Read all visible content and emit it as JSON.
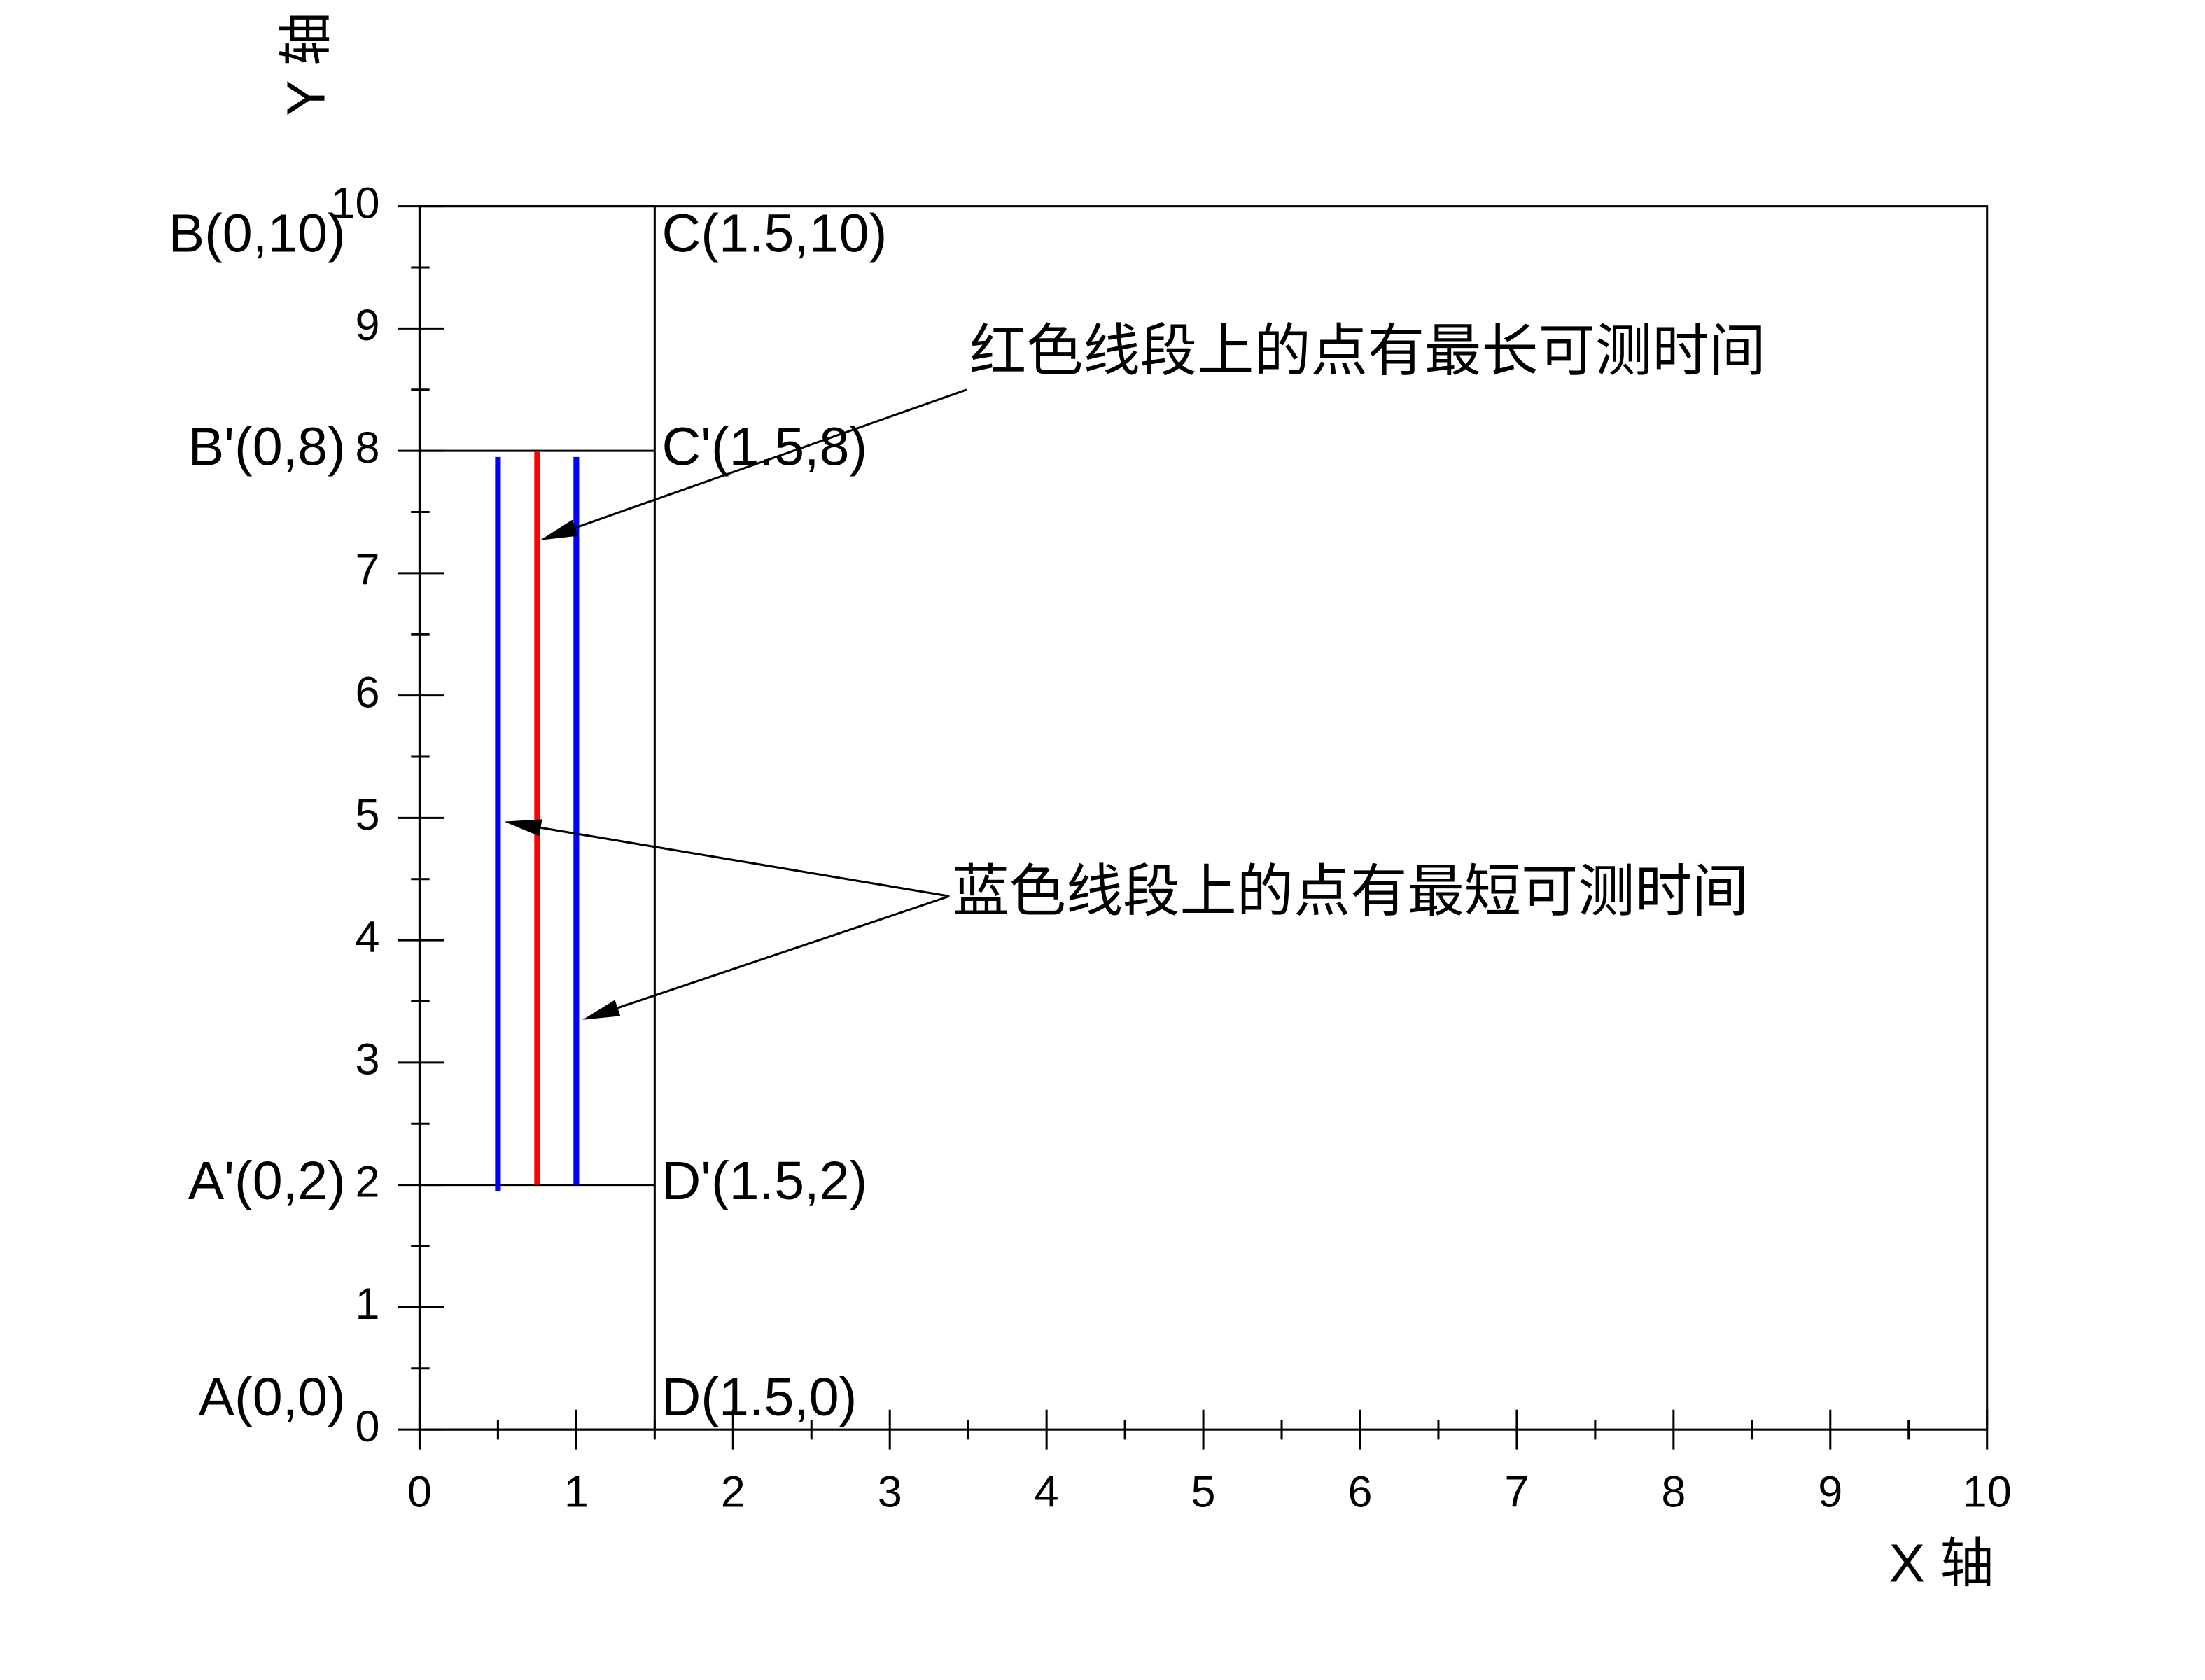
{
  "chart_data": {
    "type": "line",
    "xlabel": "X 轴",
    "ylabel": "Y 轴",
    "xlim": [
      0,
      10
    ],
    "ylim": [
      0,
      10
    ],
    "xticks": [
      0,
      1,
      2,
      3,
      4,
      5,
      6,
      7,
      8,
      9,
      10
    ],
    "yticks": [
      0,
      1,
      2,
      3,
      4,
      5,
      6,
      7,
      8,
      9,
      10
    ],
    "xminor": [
      0.5,
      1.5,
      2.5,
      3.5,
      4.5,
      5.5,
      6.5,
      7.5,
      8.5,
      9.5
    ],
    "yminor": [
      0.5,
      1.5,
      2.5,
      3.5,
      4.5,
      5.5,
      6.5,
      7.5,
      8.5,
      9.5
    ],
    "series": [
      {
        "color": "#000000",
        "x": [
          0,
          1.5,
          1.5,
          0,
          0
        ],
        "y": [
          0,
          0,
          10,
          10,
          0
        ]
      },
      {
        "color": "#000000",
        "x": [
          0,
          1.5
        ],
        "y": [
          2,
          2
        ]
      },
      {
        "color": "#000000",
        "x": [
          0,
          1.5
        ],
        "y": [
          8,
          8
        ]
      },
      {
        "color": "#ff0000",
        "x": [
          0.75,
          0.75
        ],
        "y": [
          2,
          8
        ]
      },
      {
        "color": "#0000ff",
        "x": [
          0.5,
          0.5
        ],
        "y": [
          1.95,
          7.95
        ]
      },
      {
        "color": "#0000ff",
        "x": [
          1,
          1
        ],
        "y": [
          2,
          7.95
        ]
      }
    ],
    "points": [
      {
        "label": "A(0,0)",
        "x": 0,
        "y": 0
      },
      {
        "label": "B(0,10)",
        "x": 0,
        "y": 10
      },
      {
        "label": "A'(0,2)",
        "x": 0,
        "y": 2
      },
      {
        "label": "B'(0,8)",
        "x": 0,
        "y": 8
      },
      {
        "label": "D(1.5,0)",
        "x": 1.5,
        "y": 0
      },
      {
        "label": "C(1.5,10)",
        "x": 1.5,
        "y": 10
      },
      {
        "label": "D'(1.5,2)",
        "x": 1.5,
        "y": 2
      },
      {
        "label": "C'(1.5,8)",
        "x": 1.5,
        "y": 8
      }
    ],
    "annotations": [
      {
        "text": "红色线段上的点有最长可测时间",
        "x": 3.49,
        "y": 8.5,
        "targets": [
          {
            "x": 0.77,
            "y": 7.27
          }
        ]
      },
      {
        "text": "蓝色线段上的点有最短可测时间",
        "x": 3.38,
        "y": 4.36,
        "targets": [
          {
            "x": 0.54,
            "y": 4.97
          },
          {
            "x": 1.04,
            "y": 3.35
          }
        ]
      }
    ]
  }
}
